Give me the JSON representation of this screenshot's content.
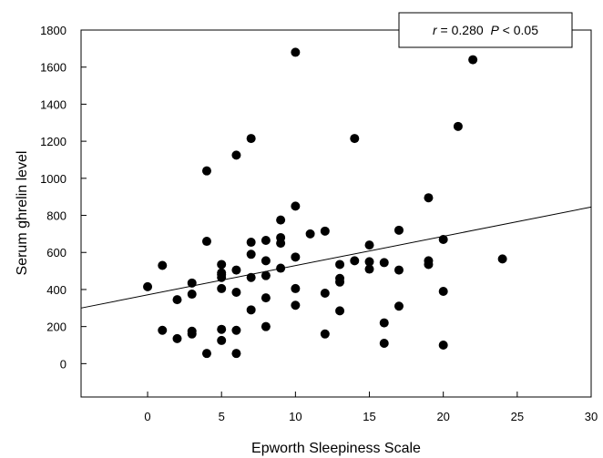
{
  "chart_data": {
    "type": "scatter",
    "xlabel": "Epworth Sleepiness Scale",
    "ylabel": "Serum ghrelin level",
    "xlim": [
      -4.5,
      30
    ],
    "ylim": [
      -180,
      1800
    ],
    "xticks": [
      0,
      5,
      10,
      15,
      20,
      25,
      30
    ],
    "yticks": [
      0,
      200,
      400,
      600,
      800,
      1000,
      1200,
      1400,
      1600,
      1800
    ],
    "grid": false,
    "annotation": {
      "r_label": "r",
      "r_value": " = 0.280  ",
      "p_label": "P",
      "p_value": " < 0.05"
    },
    "regression_line": {
      "x": [
        -4.5,
        30
      ],
      "y": [
        300,
        845
      ]
    },
    "points": [
      {
        "x": 0,
        "y": 415
      },
      {
        "x": 1,
        "y": 530
      },
      {
        "x": 1,
        "y": 180
      },
      {
        "x": 2,
        "y": 345
      },
      {
        "x": 2,
        "y": 135
      },
      {
        "x": 3,
        "y": 435
      },
      {
        "x": 3,
        "y": 375
      },
      {
        "x": 3,
        "y": 175
      },
      {
        "x": 3,
        "y": 160
      },
      {
        "x": 4,
        "y": 1040
      },
      {
        "x": 4,
        "y": 660
      },
      {
        "x": 4,
        "y": 55
      },
      {
        "x": 5,
        "y": 535
      },
      {
        "x": 5,
        "y": 490
      },
      {
        "x": 5,
        "y": 480
      },
      {
        "x": 5,
        "y": 465
      },
      {
        "x": 5,
        "y": 405
      },
      {
        "x": 5,
        "y": 185
      },
      {
        "x": 5,
        "y": 125
      },
      {
        "x": 6,
        "y": 1125
      },
      {
        "x": 6,
        "y": 505
      },
      {
        "x": 6,
        "y": 385
      },
      {
        "x": 6,
        "y": 180
      },
      {
        "x": 6,
        "y": 55
      },
      {
        "x": 7,
        "y": 1215
      },
      {
        "x": 7,
        "y": 655
      },
      {
        "x": 7,
        "y": 590
      },
      {
        "x": 7,
        "y": 465
      },
      {
        "x": 7,
        "y": 290
      },
      {
        "x": 8,
        "y": 665
      },
      {
        "x": 8,
        "y": 555
      },
      {
        "x": 8,
        "y": 475
      },
      {
        "x": 8,
        "y": 355
      },
      {
        "x": 8,
        "y": 200
      },
      {
        "x": 9,
        "y": 775
      },
      {
        "x": 9,
        "y": 680
      },
      {
        "x": 9,
        "y": 650
      },
      {
        "x": 9,
        "y": 515
      },
      {
        "x": 10,
        "y": 1680
      },
      {
        "x": 10,
        "y": 850
      },
      {
        "x": 10,
        "y": 575
      },
      {
        "x": 10,
        "y": 405
      },
      {
        "x": 10,
        "y": 315
      },
      {
        "x": 11,
        "y": 700
      },
      {
        "x": 12,
        "y": 715
      },
      {
        "x": 12,
        "y": 380
      },
      {
        "x": 12,
        "y": 160
      },
      {
        "x": 13,
        "y": 535
      },
      {
        "x": 13,
        "y": 460
      },
      {
        "x": 13,
        "y": 440
      },
      {
        "x": 13,
        "y": 285
      },
      {
        "x": 14,
        "y": 1215
      },
      {
        "x": 14,
        "y": 555
      },
      {
        "x": 15,
        "y": 640
      },
      {
        "x": 15,
        "y": 550
      },
      {
        "x": 15,
        "y": 510
      },
      {
        "x": 16,
        "y": 545
      },
      {
        "x": 16,
        "y": 220
      },
      {
        "x": 16,
        "y": 110
      },
      {
        "x": 17,
        "y": 720
      },
      {
        "x": 17,
        "y": 505
      },
      {
        "x": 17,
        "y": 310
      },
      {
        "x": 19,
        "y": 895
      },
      {
        "x": 19,
        "y": 555
      },
      {
        "x": 19,
        "y": 535
      },
      {
        "x": 20,
        "y": 670
      },
      {
        "x": 20,
        "y": 390
      },
      {
        "x": 20,
        "y": 100
      },
      {
        "x": 21,
        "y": 1280
      },
      {
        "x": 22,
        "y": 1640
      },
      {
        "x": 24,
        "y": 565
      }
    ]
  }
}
